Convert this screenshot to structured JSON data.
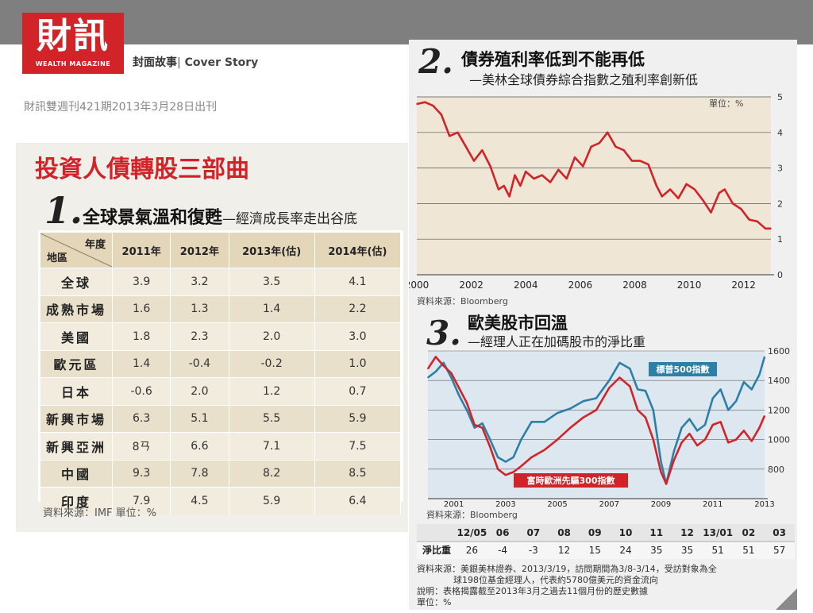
{
  "header": {
    "logo_cn": "財訊",
    "logo_en": "WEALTH MAGAZINE",
    "section_cn": "封面故事",
    "section_sep": "|",
    "section_en": "Cover Story",
    "issue": "財訊雙週刊421期2013年3月28日出刊"
  },
  "panel1": {
    "title": "投資人債轉股三部曲",
    "number": "1.",
    "heading": "全球景氣溫和復甦",
    "subheading": "—經濟成長率走出谷底",
    "corner_year": "年度",
    "corner_region": "地區",
    "source": "資料來源：IMF   單位：%"
  },
  "panel2": {
    "number": "2.",
    "heading": "債券殖利率低到不能再低",
    "subheading": "—美林全球債券綜合指數之殖利率創新低",
    "unit": "單位：%",
    "source": "資料來源：Bloomberg"
  },
  "panel3": {
    "number": "3.",
    "heading": "歐美股市回溫",
    "subheading": "—經理人正在加碼股市的淨比重",
    "source": "資料來源：Bloomberg",
    "row_header": "淨比重",
    "notes": [
      "資料來源：美銀美林證券、2013/3/19，訪問期間為3/8-3/14，受訪對象為全",
      "球198位基金經理人，代表約5780億美元的資金流向",
      "說明：表格揭露截至2013年3月之過去11個月份的歷史數據",
      "單位：%"
    ]
  },
  "chart_data": [
    {
      "type": "table",
      "columns": [
        "2011年",
        "2012年",
        "2013年(估)",
        "2014年(估)"
      ],
      "rows": [
        {
          "region": "全球",
          "values": [
            "3.9",
            "3.2",
            "3.5",
            "4.1"
          ]
        },
        {
          "region": "成熟市場",
          "values": [
            "1.6",
            "1.3",
            "1.4",
            "2.2"
          ]
        },
        {
          "region": "美國",
          "values": [
            "1.8",
            "2.3",
            "2.0",
            "3.0"
          ]
        },
        {
          "region": "歐元區",
          "values": [
            "1.4",
            "-0.4",
            "-0.2",
            "1.0"
          ]
        },
        {
          "region": "日本",
          "values": [
            "-0.6",
            "2.0",
            "1.2",
            "0.7"
          ]
        },
        {
          "region": "新興市場",
          "values": [
            "6.3",
            "5.1",
            "5.5",
            "5.9"
          ]
        },
        {
          "region": "新興亞洲",
          "values": [
            "8ㄢ",
            "6.6",
            "7.1",
            "7.5"
          ]
        },
        {
          "region": "中國",
          "values": [
            "9.3",
            "7.8",
            "8.2",
            "8.5"
          ]
        },
        {
          "region": "印度",
          "values": [
            "7.9",
            "4.5",
            "5.9",
            "6.4"
          ]
        }
      ]
    },
    {
      "type": "line",
      "title": "債券殖利率低到不能再低",
      "ylabel": "單位：%",
      "ylim": [
        0,
        5
      ],
      "xlim": [
        2000,
        2013
      ],
      "xticks": [
        "2000",
        "2002",
        "2004",
        "2006",
        "2008",
        "2010",
        "2012"
      ],
      "yticks": [
        "0",
        "1",
        "2",
        "3",
        "4",
        "5"
      ],
      "color": "#d22329",
      "x": [
        2000.0,
        2000.3,
        2000.6,
        2000.9,
        2001.2,
        2001.5,
        2001.8,
        2002.1,
        2002.4,
        2002.7,
        2003.0,
        2003.2,
        2003.4,
        2003.6,
        2003.8,
        2004.0,
        2004.3,
        2004.6,
        2004.9,
        2005.2,
        2005.5,
        2005.8,
        2006.1,
        2006.4,
        2006.7,
        2007.0,
        2007.3,
        2007.6,
        2007.9,
        2008.2,
        2008.5,
        2008.8,
        2009.0,
        2009.3,
        2009.6,
        2009.9,
        2010.2,
        2010.5,
        2010.8,
        2011.1,
        2011.3,
        2011.6,
        2011.9,
        2012.2,
        2012.5,
        2012.8,
        2013.0
      ],
      "y": [
        4.8,
        4.85,
        4.75,
        4.5,
        3.9,
        4.0,
        3.6,
        3.2,
        3.5,
        3.05,
        2.4,
        2.5,
        2.2,
        2.8,
        2.5,
        2.9,
        2.7,
        2.8,
        2.6,
        2.95,
        2.7,
        3.3,
        3.05,
        3.6,
        3.7,
        4.0,
        3.6,
        3.5,
        3.2,
        3.2,
        3.1,
        2.5,
        2.2,
        2.4,
        2.15,
        2.55,
        2.4,
        2.1,
        1.75,
        2.3,
        2.4,
        2.0,
        1.85,
        1.55,
        1.5,
        1.3,
        1.3
      ]
    },
    {
      "type": "line",
      "title": "歐美股市回溫",
      "ylim": [
        600,
        1600
      ],
      "xlim": [
        2000,
        2013
      ],
      "xticks": [
        "2001",
        "2003",
        "2005",
        "2007",
        "2009",
        "2011",
        "2013"
      ],
      "yticks": [
        "800",
        "1000",
        "1200",
        "1400",
        "1600"
      ],
      "series": [
        {
          "name": "標普500指數",
          "color": "#2e7fa6",
          "x": [
            2000.0,
            2000.3,
            2000.6,
            2000.9,
            2001.2,
            2001.5,
            2001.8,
            2002.1,
            2002.4,
            2002.7,
            2003.0,
            2003.3,
            2003.6,
            2004.0,
            2004.5,
            2005.0,
            2005.5,
            2006.0,
            2006.5,
            2007.0,
            2007.4,
            2007.8,
            2008.1,
            2008.4,
            2008.7,
            2009.0,
            2009.2,
            2009.5,
            2009.8,
            2010.1,
            2010.4,
            2010.7,
            2011.0,
            2011.3,
            2011.6,
            2011.9,
            2012.2,
            2012.5,
            2012.8,
            2013.0
          ],
          "y": [
            1420,
            1460,
            1520,
            1420,
            1300,
            1200,
            1080,
            1110,
            1000,
            880,
            850,
            880,
            1000,
            1120,
            1120,
            1180,
            1210,
            1260,
            1280,
            1400,
            1520,
            1480,
            1340,
            1330,
            1200,
            850,
            700,
            920,
            1080,
            1140,
            1060,
            1100,
            1280,
            1340,
            1200,
            1260,
            1390,
            1340,
            1440,
            1560
          ]
        },
        {
          "name": "富時歐洲先驅300指數",
          "color": "#d22329",
          "x": [
            2000.0,
            2000.3,
            2000.6,
            2000.9,
            2001.2,
            2001.5,
            2001.8,
            2002.1,
            2002.4,
            2002.7,
            2003.0,
            2003.3,
            2003.6,
            2004.0,
            2004.5,
            2005.0,
            2005.5,
            2006.0,
            2006.5,
            2007.0,
            2007.4,
            2007.8,
            2008.1,
            2008.4,
            2008.7,
            2009.0,
            2009.2,
            2009.5,
            2009.8,
            2010.1,
            2010.4,
            2010.7,
            2011.0,
            2011.3,
            2011.6,
            2011.9,
            2012.2,
            2012.5,
            2012.8,
            2013.0
          ],
          "y": [
            1480,
            1560,
            1500,
            1450,
            1350,
            1250,
            1100,
            1080,
            950,
            800,
            760,
            780,
            820,
            880,
            930,
            1000,
            1080,
            1150,
            1200,
            1350,
            1420,
            1360,
            1200,
            1150,
            1000,
            780,
            700,
            860,
            980,
            1040,
            960,
            1000,
            1100,
            1120,
            980,
            1000,
            1060,
            990,
            1080,
            1160
          ]
        }
      ]
    },
    {
      "type": "table",
      "row_label": "淨比重",
      "columns": [
        "12/05",
        "06",
        "07",
        "08",
        "09",
        "10",
        "11",
        "12",
        "13/01",
        "02",
        "03"
      ],
      "values": [
        26,
        -4,
        -3,
        12,
        15,
        24,
        35,
        35,
        51,
        51,
        57
      ]
    }
  ]
}
